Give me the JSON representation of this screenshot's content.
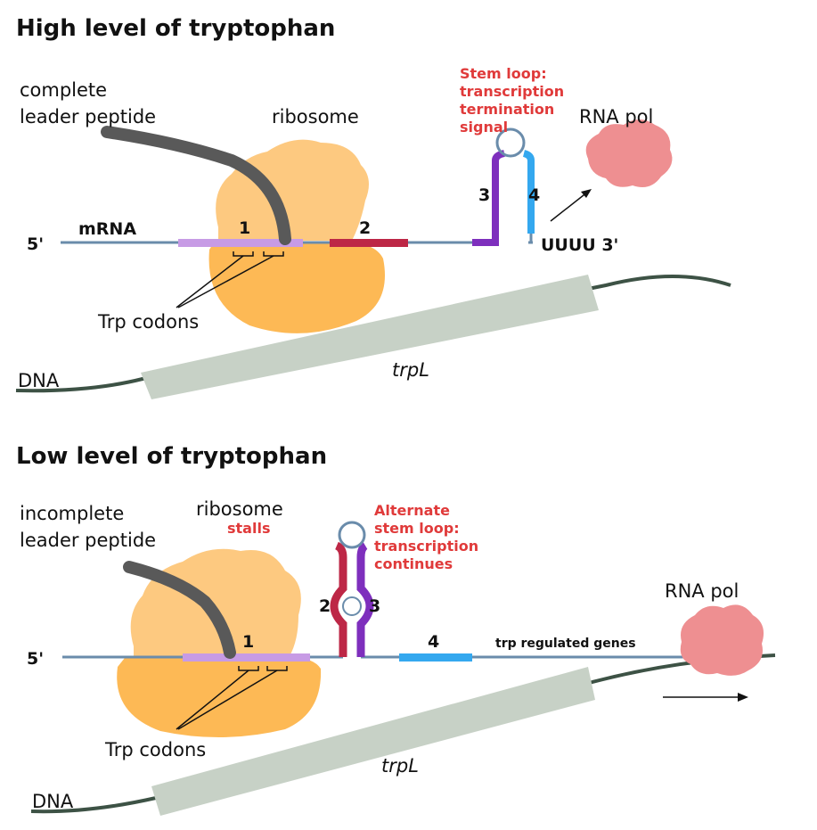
{
  "high": {
    "title": "High level of tryptophan",
    "leader_label_1": "complete",
    "leader_label_2": "leader peptide",
    "ribosome_label": "ribosome",
    "stem_label_1": "Stem loop:",
    "stem_label_2": "transcription",
    "stem_label_3": "termination",
    "stem_label_4": "signal",
    "rnapol_label": "RNA pol",
    "five_prime": "5'",
    "mrna_label": "mRNA",
    "region_1": "1",
    "region_2": "2",
    "region_3": "3",
    "region_4": "4",
    "uuuu_label": "UUUU 3'",
    "trp_codons": "Trp codons",
    "dna_label": "DNA",
    "gene_label": "trpL"
  },
  "low": {
    "title": "Low level of tryptophan",
    "leader_label_1": "incomplete",
    "leader_label_2": "leader peptide",
    "ribosome_label": "ribosome",
    "stalls_label": "stalls",
    "stem_label_1": "Alternate",
    "stem_label_2": "stem loop:",
    "stem_label_3": "transcription",
    "stem_label_4": "continues",
    "rnapol_label": "RNA pol",
    "five_prime": "5'",
    "region_1": "1",
    "region_2": "2",
    "region_3": "3",
    "region_4": "4",
    "genes_label": "trp regulated genes",
    "trp_codons": "Trp codons",
    "dna_label": "DNA",
    "gene_label": "trpL"
  },
  "colors": {
    "ribosome_top": "#fdc980",
    "ribosome_bottom": "#fdb955",
    "peptide": "#595959",
    "mrna": "#6a8cab",
    "region1": "#c79be5",
    "region2": "#bd2746",
    "region3": "#7e2fbd",
    "region4": "#34a8ef",
    "dna": "#3d5245",
    "gene_box": "#c7d1c6",
    "rna_pol": "#ee8f91",
    "stem_text": "#e03a3a"
  }
}
